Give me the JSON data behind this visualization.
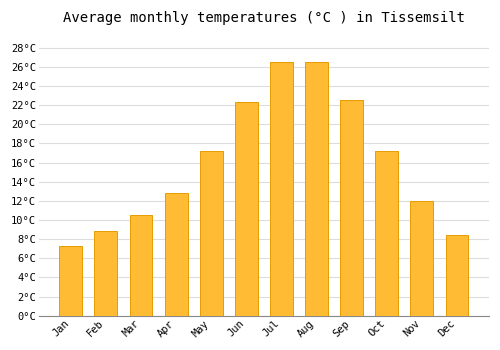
{
  "title": "Average monthly temperatures (°C ) in Tissemsilt",
  "months": [
    "Jan",
    "Feb",
    "Mar",
    "Apr",
    "May",
    "Jun",
    "Jul",
    "Aug",
    "Sep",
    "Oct",
    "Nov",
    "Dec"
  ],
  "temperatures": [
    7.3,
    8.8,
    10.5,
    12.8,
    17.2,
    22.3,
    26.5,
    26.5,
    22.5,
    17.2,
    12.0,
    8.4
  ],
  "bar_color": "#FFBB33",
  "bar_edge_color": "#E89C00",
  "yticks": [
    0,
    2,
    4,
    6,
    8,
    10,
    12,
    14,
    16,
    18,
    20,
    22,
    24,
    26,
    28
  ],
  "ytick_labels": [
    "0°C",
    "2°C",
    "4°C",
    "6°C",
    "8°C",
    "10°C",
    "12°C",
    "14°C",
    "16°C",
    "18°C",
    "20°C",
    "22°C",
    "24°C",
    "26°C",
    "28°C"
  ],
  "ylim": [
    0,
    29.5
  ],
  "background_color": "#ffffff",
  "grid_color": "#dddddd",
  "title_fontsize": 10,
  "tick_fontsize": 7.5,
  "font_family": "monospace"
}
